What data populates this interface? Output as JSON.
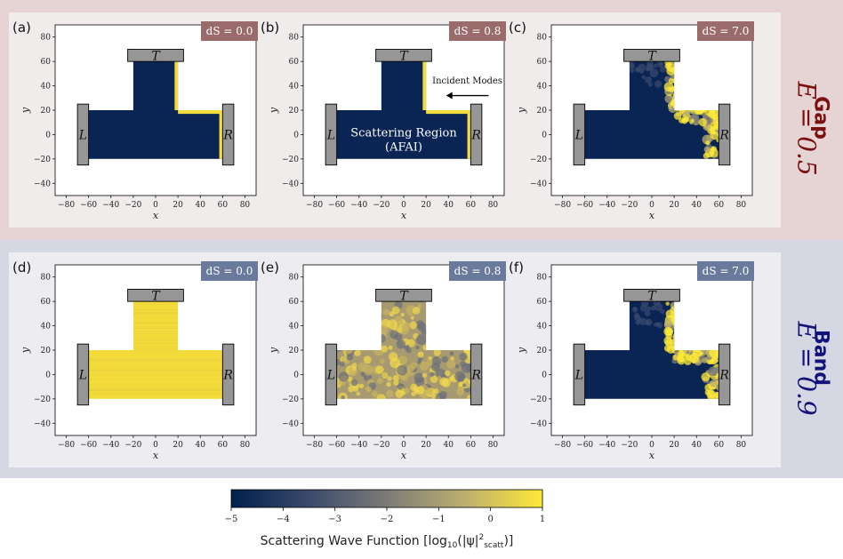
{
  "rows": [
    {
      "id": "gap",
      "title": "Gap",
      "equation": "E = 0.5",
      "bg_color": "#e6d4d4",
      "panel_color": "#f1ecec",
      "title_color": "#7a1010",
      "ds_box_color": "#9a6b6b",
      "panels": [
        {
          "label": "(a)",
          "ds": "dS = 0.0",
          "fill": "dark",
          "edge": "thin"
        },
        {
          "label": "(b)",
          "ds": "dS = 0.8",
          "fill": "dark",
          "edge": "thin",
          "annotation": "Scattering Region",
          "annotation2": "(AFAI)",
          "arrow_label": "Incident Modes"
        },
        {
          "label": "(c)",
          "ds": "dS = 7.0",
          "fill": "dark",
          "edge": "rough"
        }
      ]
    },
    {
      "id": "band",
      "title": "Band",
      "equation": "E = 0.9",
      "bg_color": "#d5d7e2",
      "panel_color": "#edecf1",
      "title_color": "#12127a",
      "ds_box_color": "#6a7a9c",
      "panels": [
        {
          "label": "(d)",
          "ds": "dS = 0.0",
          "fill": "yellow",
          "edge": "none"
        },
        {
          "label": "(e)",
          "ds": "dS = 0.8",
          "fill": "mixed",
          "edge": "none"
        },
        {
          "label": "(f)",
          "ds": "dS = 7.0",
          "fill": "dark",
          "edge": "rough"
        }
      ]
    }
  ],
  "leads": {
    "left": "L",
    "right": "R",
    "top": "T"
  },
  "chart_data": {
    "type": "heatmap",
    "xlabel": "x",
    "ylabel": "y",
    "xlim": [
      -90,
      90
    ],
    "ylim": [
      -50,
      90
    ],
    "xticks": [
      -80,
      -60,
      -40,
      -20,
      0,
      20,
      40,
      60,
      80
    ],
    "yticks": [
      -40,
      -20,
      0,
      20,
      40,
      60,
      80
    ],
    "geometry": {
      "horizontal_bar": {
        "x": [
          -60,
          60
        ],
        "y": [
          -20,
          20
        ]
      },
      "vertical_bar": {
        "x": [
          -20,
          20
        ],
        "y": [
          20,
          60
        ]
      },
      "lead_L": {
        "x": [
          -70,
          -60
        ],
        "y": [
          -25,
          25
        ]
      },
      "lead_R": {
        "x": [
          60,
          70
        ],
        "y": [
          -25,
          25
        ]
      },
      "lead_T": {
        "x": [
          -25,
          25
        ],
        "y": [
          60,
          70
        ]
      }
    },
    "colorbar": {
      "label": "Scattering Wave Function [log10(|ψ|²scatt)]",
      "range": [
        -5,
        1
      ],
      "ticks": [
        -5,
        -4,
        -3,
        -2,
        -1,
        0,
        1
      ],
      "colormap": [
        "#00204c",
        "#3b4a6c",
        "#7c7b78",
        "#bcaf6f",
        "#fee838"
      ]
    }
  }
}
